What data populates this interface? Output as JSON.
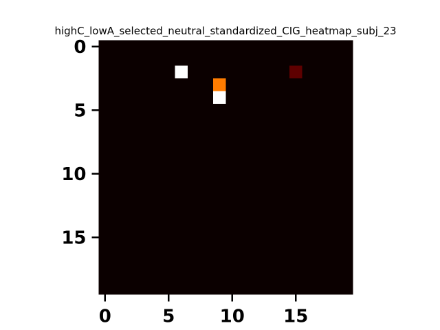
{
  "chart_data": {
    "type": "heatmap",
    "title": "highC_lowA_selected_neutral_standardized_CIG_heatmap_subj_23",
    "rows": 20,
    "cols": 20,
    "background_value": 0,
    "cells": [
      {
        "row": 2,
        "col": 6,
        "value": 1.0
      },
      {
        "row": 2,
        "col": 15,
        "value": 0.12
      },
      {
        "row": 3,
        "col": 9,
        "value": 0.55
      },
      {
        "row": 4,
        "col": 9,
        "value": 1.0
      }
    ],
    "x_ticks": [
      0,
      5,
      10,
      15
    ],
    "y_ticks": [
      0,
      5,
      10,
      15
    ],
    "colormap": "hot",
    "grid": false,
    "colors": {
      "low": "#0b0000",
      "mid": "#e00000",
      "high": "#ffffff",
      "dark_red": "#2a0000"
    }
  }
}
